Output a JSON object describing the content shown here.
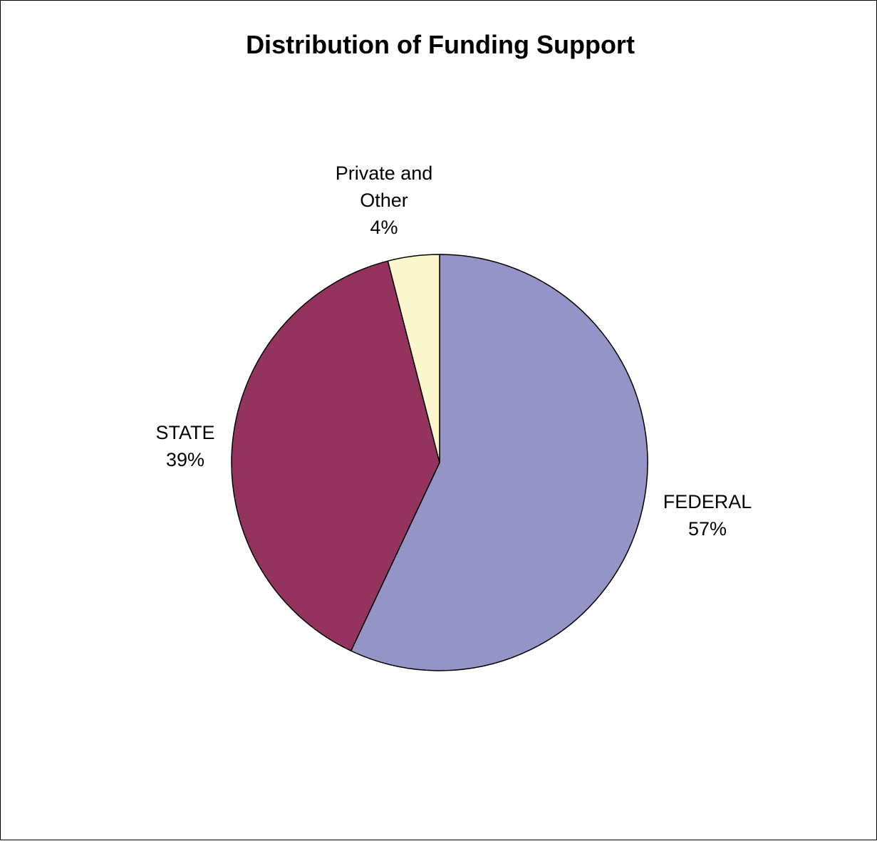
{
  "chart_data": {
    "type": "pie",
    "title": "Distribution of Funding Support",
    "slices": [
      {
        "label": "FEDERAL",
        "value": 57,
        "value_label": "57%",
        "color": "#9494c6"
      },
      {
        "label": "STATE",
        "value": 39,
        "value_label": "39%",
        "color": "#94335e"
      },
      {
        "label": "Private and Other",
        "label_lines": [
          "Private and",
          "Other"
        ],
        "value": 4,
        "value_label": "4%",
        "color": "#fbf7cd"
      }
    ],
    "legend": "none",
    "start_angle": "12 o'clock",
    "direction": "clockwise",
    "slice_border_color": "#000000",
    "background_color": "#ffffff",
    "frame_border_color": "#000000"
  }
}
